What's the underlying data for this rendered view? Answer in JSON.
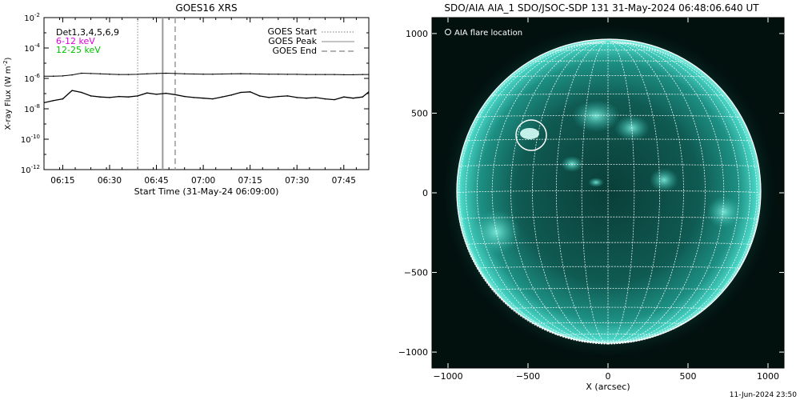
{
  "chart_data": [
    {
      "type": "line",
      "title": "GOES16 XRS",
      "xlabel": "Start Time (31-May-24 06:09:00)",
      "ylabel": "X-ray Flux (W m",
      "ylabel_sup": "-2",
      "ylabel_close": ")",
      "y_scale": "log",
      "ylim": [
        1e-12,
        0.01
      ],
      "xlim": [
        "06:09",
        "07:53"
      ],
      "x_ticks": [
        "06:15",
        "06:30",
        "06:45",
        "07:00",
        "07:15",
        "07:30",
        "07:45"
      ],
      "y_ticks": [
        {
          "base": "10",
          "exp": "-2"
        },
        {
          "base": "10",
          "exp": "-4"
        },
        {
          "base": "10",
          "exp": "-6"
        },
        {
          "base": "10",
          "exp": "-8"
        },
        {
          "base": "10",
          "exp": "-10"
        },
        {
          "base": "10",
          "exp": "-12"
        }
      ],
      "channel_labels": [
        {
          "text": "Det1,3,4,5,6,9",
          "color": "#000000"
        },
        {
          "text": "6-12 keV",
          "color": "#e000e0"
        },
        {
          "text": "12-25 keV",
          "color": "#00c000"
        }
      ],
      "legend": [
        {
          "label": "GOES Start",
          "style": "dotted"
        },
        {
          "label": "GOES Peak",
          "style": "solid"
        },
        {
          "label": "GOES End",
          "style": "dashed"
        }
      ],
      "legend_position": "top-right",
      "event_lines": {
        "start": "06:39",
        "peak": "06:47",
        "end": "06:51"
      },
      "series": [
        {
          "channel": "long",
          "x": [
            "06:09",
            "06:12",
            "06:15",
            "06:18",
            "06:21",
            "06:24",
            "06:27",
            "06:30",
            "06:33",
            "06:36",
            "06:39",
            "06:42",
            "06:45",
            "06:48",
            "06:51",
            "06:54",
            "06:57",
            "07:00",
            "07:03",
            "07:06",
            "07:09",
            "07:12",
            "07:15",
            "07:18",
            "07:21",
            "07:24",
            "07:27",
            "07:30",
            "07:33",
            "07:36",
            "07:39",
            "07:42",
            "07:45",
            "07:48",
            "07:51",
            "07:53"
          ],
          "values": [
            1.4e-06,
            1.4e-06,
            1.45e-06,
            1.7e-06,
            2.2e-06,
            2.1e-06,
            2e-06,
            1.9e-06,
            1.8e-06,
            1.8e-06,
            1.85e-06,
            2e-06,
            2.1e-06,
            2.2e-06,
            2.1e-06,
            2e-06,
            1.95e-06,
            1.9e-06,
            1.9e-06,
            1.95e-06,
            2e-06,
            2.05e-06,
            2e-06,
            1.95e-06,
            1.9e-06,
            1.9e-06,
            1.85e-06,
            1.85e-06,
            1.8e-06,
            1.8e-06,
            1.8e-06,
            1.8e-06,
            1.75e-06,
            1.75e-06,
            1.8e-06,
            1.8e-06
          ]
        },
        {
          "channel": "short",
          "x": [
            "06:09",
            "06:12",
            "06:15",
            "06:18",
            "06:21",
            "06:24",
            "06:27",
            "06:30",
            "06:33",
            "06:36",
            "06:39",
            "06:42",
            "06:45",
            "06:48",
            "06:51",
            "06:54",
            "06:57",
            "07:00",
            "07:03",
            "07:06",
            "07:09",
            "07:12",
            "07:15",
            "07:18",
            "07:21",
            "07:24",
            "07:27",
            "07:30",
            "07:33",
            "07:36",
            "07:39",
            "07:42",
            "07:45",
            "07:48",
            "07:51",
            "07:53"
          ],
          "values": [
            2.5e-08,
            3.5e-08,
            4.5e-08,
            1.6e-07,
            1.2e-07,
            7e-08,
            6e-08,
            5.5e-08,
            6.5e-08,
            6e-08,
            7e-08,
            1.1e-07,
            9e-08,
            1.05e-07,
            8.5e-08,
            6.5e-08,
            5.5e-08,
            5e-08,
            4.5e-08,
            6e-08,
            8e-08,
            1.2e-07,
            1.3e-07,
            7e-08,
            5.5e-08,
            6.5e-08,
            7e-08,
            5.5e-08,
            5e-08,
            5.5e-08,
            4.5e-08,
            4e-08,
            6e-08,
            5e-08,
            6e-08,
            1.3e-07
          ]
        }
      ]
    },
    {
      "type": "image",
      "title": "SDO/AIA AIA_1 SDO/JSOC-SDP 131 31-May-2024 06:48:06.640 UT",
      "xlabel": "X (arcsec)",
      "x_ticks": [
        "-1000",
        "-500",
        "0",
        "500",
        "1000"
      ],
      "y_ticks": [
        "1000",
        "500",
        "0",
        "-500",
        "-1000"
      ],
      "xlim": [
        -1100,
        1100
      ],
      "ylim": [
        -1100,
        1100
      ],
      "legend_text": "AIA flare location",
      "flare_location": {
        "x": -480,
        "y": 350,
        "radius": 95
      },
      "solar_radius": 945,
      "grid_spacing_deg": 10,
      "colors": {
        "disk": "#2bb5a6",
        "disk_edge": "#06564f",
        "background": "#02100e",
        "grid": "#ffffff"
      }
    }
  ],
  "footer_timestamp": "11-Jun-2024 23:50"
}
